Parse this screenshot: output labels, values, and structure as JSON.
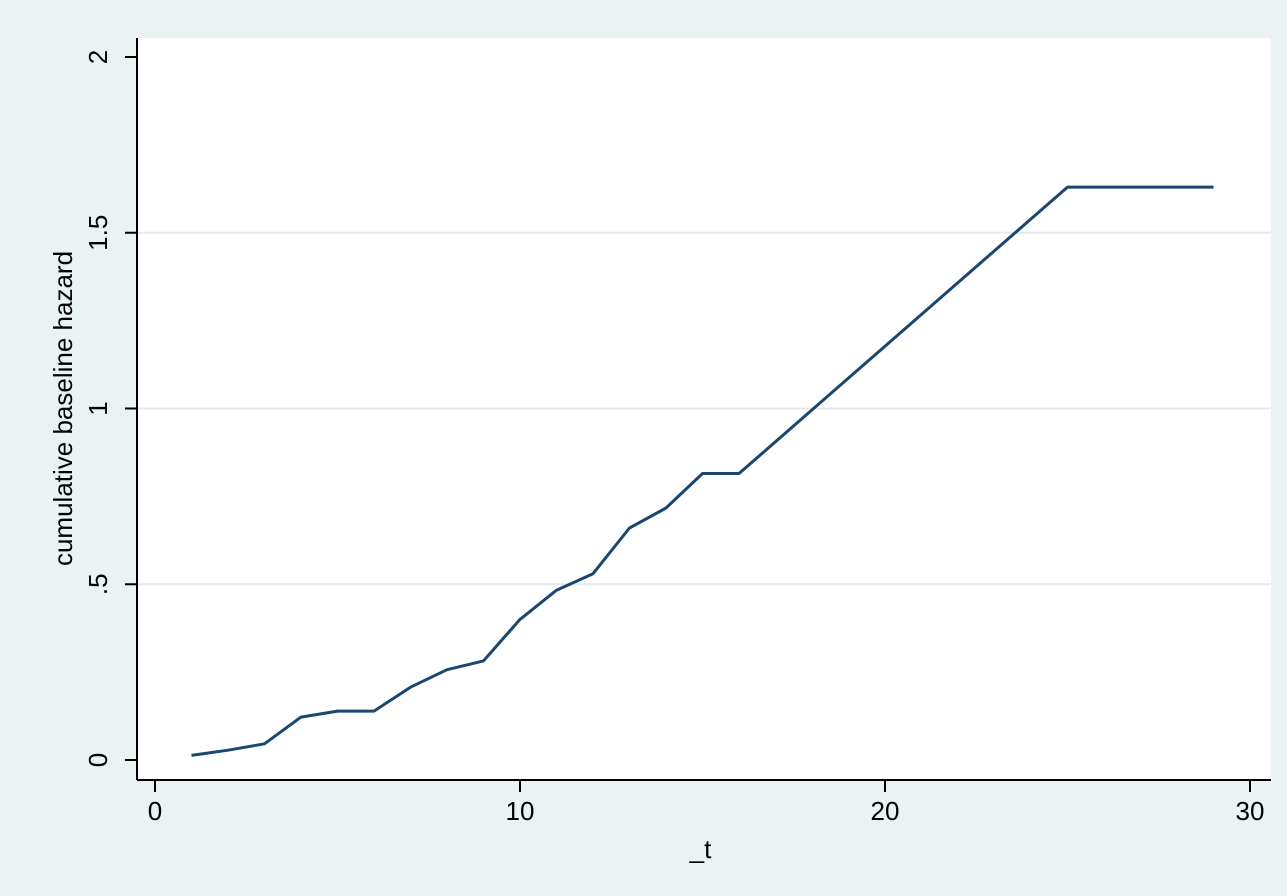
{
  "chart_data": {
    "type": "line",
    "title": "",
    "xlabel": "_t",
    "ylabel": "cumulative baseline hazard",
    "xlim": [
      0,
      30
    ],
    "ylim": [
      0,
      2
    ],
    "xticks": [
      0,
      10,
      20,
      30
    ],
    "xtick_labels": [
      "0",
      "10",
      "20",
      "30"
    ],
    "yticks": [
      0,
      0.5,
      1,
      1.5,
      2
    ],
    "ytick_labels": [
      "0",
      ".5",
      "1",
      "1.5",
      "2"
    ],
    "grid": "horizontal",
    "legend": "none",
    "series": [
      {
        "x": [
          1,
          2,
          3,
          4,
          5,
          6,
          7,
          8,
          9,
          10,
          11,
          12,
          13,
          14,
          15,
          16,
          25,
          29
        ],
        "values": [
          0.013,
          0.028,
          0.046,
          0.122,
          0.139,
          0.139,
          0.207,
          0.257,
          0.282,
          0.4,
          0.483,
          0.53,
          0.66,
          0.717,
          0.815,
          0.815,
          1.63,
          1.63
        ],
        "color": "#1a476f"
      }
    ]
  }
}
